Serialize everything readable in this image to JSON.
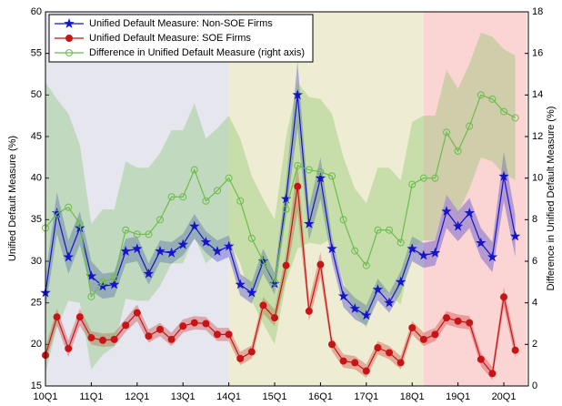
{
  "chart_data": {
    "type": "line",
    "y_label": "Unified Default Measure (%)",
    "y2_label": "Difference in Unified Default Measure (%)",
    "categories": [
      "10Q1",
      null,
      null,
      null,
      "11Q1",
      null,
      null,
      null,
      "12Q1",
      null,
      null,
      null,
      "13Q1",
      null,
      null,
      null,
      "14Q1",
      null,
      null,
      null,
      "15Q1",
      null,
      null,
      null,
      "16Q1",
      null,
      null,
      null,
      "17Q1",
      null,
      null,
      null,
      "18Q1",
      null,
      null,
      null,
      "19Q1",
      null,
      null,
      null,
      "20Q1",
      null
    ],
    "ylim": [
      15,
      60
    ],
    "yticks": [
      15,
      20,
      25,
      30,
      35,
      40,
      45,
      50,
      55,
      60
    ],
    "y2lim": [
      0,
      18
    ],
    "y2ticks": [
      0,
      2,
      4,
      6,
      8,
      10,
      12,
      14,
      16,
      18
    ],
    "regions": [
      {
        "from": 0,
        "to": 16,
        "color": "#e6e6ef"
      },
      {
        "from": 16,
        "to": 33,
        "color": "#eeedd3"
      },
      {
        "from": 33,
        "to": 42,
        "color": "#fbd4d4"
      }
    ],
    "series": [
      {
        "name": "Unified Default Measure: Non-SOE Firms",
        "color": "#1414c8",
        "marker": "star",
        "values": [
          26.2,
          35.8,
          30.5,
          34,
          28.2,
          27,
          27.2,
          31.2,
          31.5,
          28.5,
          31.2,
          31,
          32,
          34.2,
          32.3,
          31.2,
          31.8,
          27.2,
          26.2,
          30,
          27.3,
          37.5,
          50,
          34.5,
          40,
          31.5,
          25.8,
          24.3,
          23.5,
          26.6,
          25,
          27.5,
          31.5,
          30.7,
          31,
          36,
          34.2,
          35.8,
          32.2,
          30.5,
          40.2,
          33
        ],
        "error": [
          2,
          2.5,
          2,
          2,
          1.8,
          1.5,
          1.5,
          1.5,
          1.5,
          1.3,
          1.3,
          1.3,
          1.3,
          1.5,
          1.3,
          1.3,
          1.3,
          1.3,
          1.3,
          1.5,
          1.3,
          2,
          4,
          2,
          2.5,
          1.5,
          1.3,
          1.3,
          1.2,
          1.3,
          1.2,
          1.3,
          1.5,
          1.5,
          1.5,
          2,
          1.8,
          1.8,
          1.8,
          1.8,
          3,
          2.5
        ]
      },
      {
        "name": "Unified Default Measure: SOE Firms",
        "color": "#c81414",
        "marker": "circle",
        "values": [
          18.7,
          23.3,
          19.5,
          23.3,
          20.8,
          20.5,
          20.6,
          22.3,
          23.8,
          21,
          21.8,
          20.6,
          22.2,
          22.6,
          22.5,
          21.2,
          21.2,
          18.3,
          19.1,
          24.7,
          23.2,
          29.5,
          39,
          24,
          29.6,
          20,
          18,
          17.8,
          16.8,
          19.6,
          19,
          17.8,
          22,
          20.6,
          21.2,
          23.2,
          22.8,
          22.6,
          18.2,
          16.5,
          25.7,
          19.3
        ],
        "error": [
          1,
          1,
          1,
          1,
          0.8,
          0.8,
          0.8,
          0.8,
          1,
          0.8,
          0.8,
          0.8,
          0.8,
          0.8,
          0.8,
          0.8,
          0.8,
          0.8,
          0.8,
          1,
          1,
          1.5,
          3,
          1.2,
          1.5,
          0.8,
          0.8,
          0.8,
          0.8,
          0.8,
          0.8,
          0.8,
          0.8,
          0.8,
          0.8,
          0.8,
          0.8,
          0.8,
          0.8,
          0.8,
          1.2,
          1
        ]
      },
      {
        "name": "Difference in Unified Default Measure (right axis)",
        "color": "#6cbc4c",
        "marker": "open-circle",
        "axis": "y2",
        "values": [
          7.6,
          8.3,
          8.6,
          7.8,
          4.3,
          5.0,
          5.2,
          7.5,
          7.3,
          7.3,
          8.0,
          9.1,
          9.1,
          10.4,
          8.9,
          9.4,
          10.0,
          8.9,
          7.1,
          6.0,
          5.0,
          8.5,
          10.6,
          10.4,
          10.3,
          10.1,
          8.0,
          6.5,
          5.8,
          7.5,
          7.5,
          6.9,
          9.7,
          10.0,
          10.0,
          12.2,
          11.3,
          12.5,
          14.0,
          13.8,
          13.2,
          12.9
        ],
        "error": [
          7,
          5.5,
          4.5,
          3.8,
          3.5,
          3.5,
          3.3,
          3.3,
          3.2,
          3.2,
          3.2,
          3.2,
          3.2,
          3.2,
          3,
          3,
          3,
          3,
          3,
          3,
          3,
          3.5,
          4,
          3.5,
          3.5,
          3,
          3,
          3,
          3,
          3,
          3,
          3,
          3,
          3,
          3,
          3,
          3,
          3,
          3,
          3,
          3,
          3
        ]
      }
    ]
  }
}
